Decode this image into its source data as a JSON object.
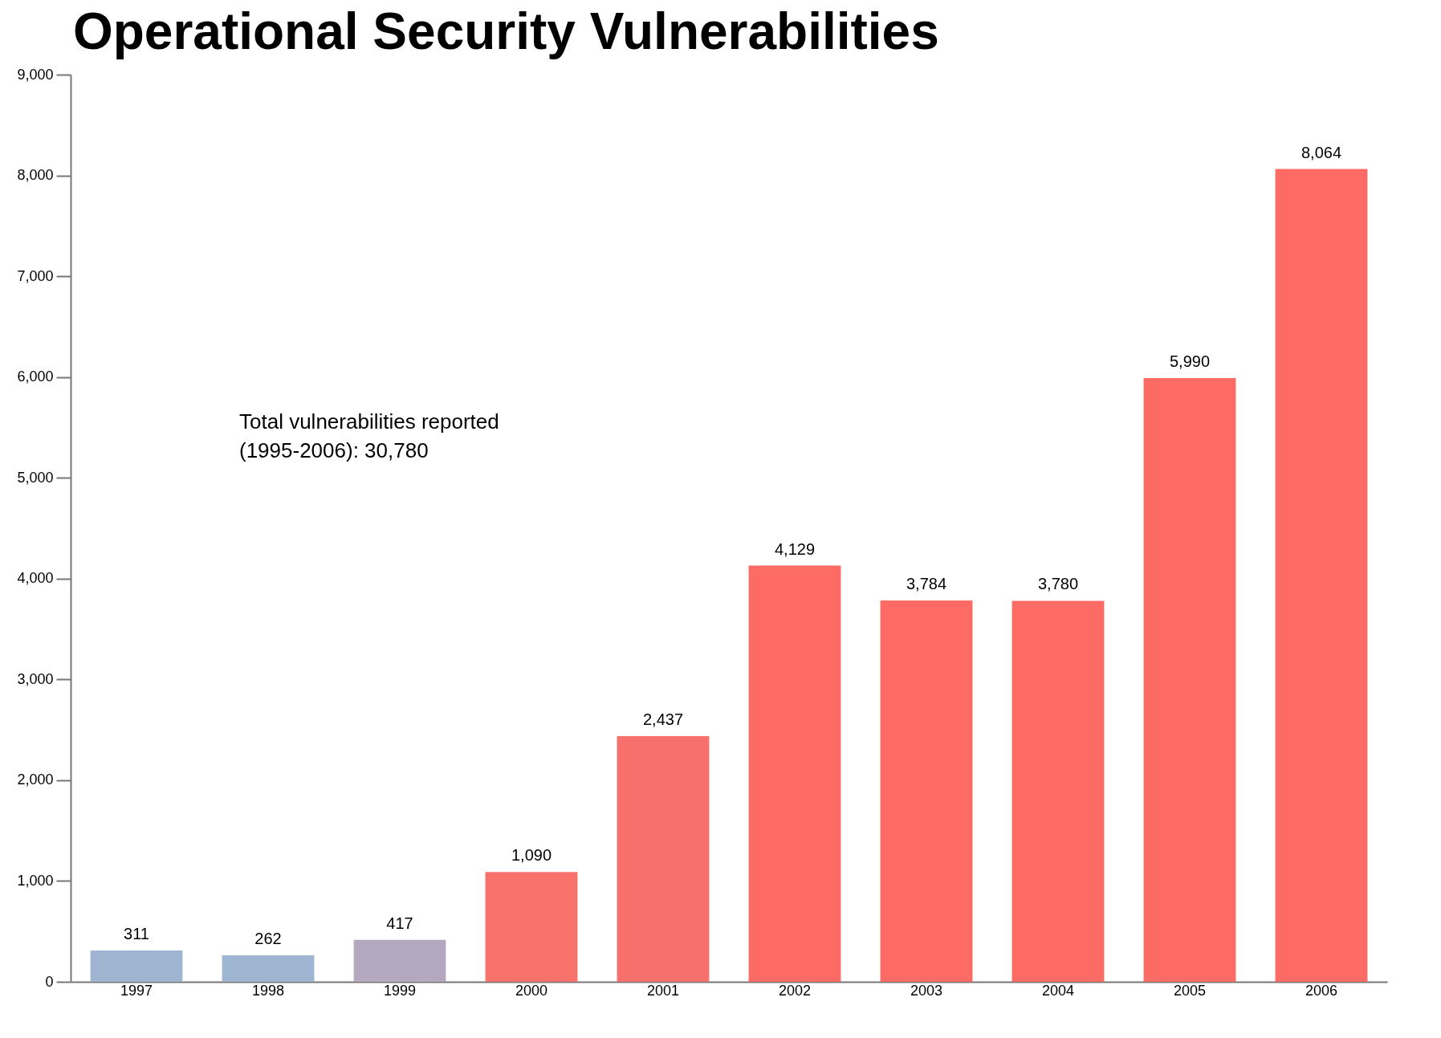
{
  "chart_data": {
    "type": "bar",
    "title": "Operational Security Vulnerabilities",
    "categories": [
      "1997",
      "1998",
      "1999",
      "2000",
      "2001",
      "2002",
      "2003",
      "2004",
      "2005",
      "2006"
    ],
    "values": [
      311,
      262,
      417,
      1090,
      2437,
      4129,
      3784,
      3780,
      5990,
      8064
    ],
    "value_labels": [
      "311",
      "262",
      "417",
      "1,090",
      "2,437",
      "4,129",
      "3,784",
      "3,780",
      "5,990",
      "8,064"
    ],
    "colors": [
      "#9fb4d0",
      "#9fb4d0",
      "#b4a8c0",
      "#f9716b",
      "#f7706b",
      "#fd6b64",
      "#fd6b64",
      "#fd6b64",
      "#fd6b64",
      "#fd6b64"
    ],
    "ylim": [
      0,
      9000
    ],
    "yticks": [
      0,
      {
        "value": 1000,
        "label": "1,000"
      },
      {
        "value": 2000,
        "label": "2,000"
      },
      {
        "value": 3000,
        "label": "3,000"
      },
      {
        "value": 4000,
        "label": "4,000"
      },
      {
        "value": 5000,
        "label": "5,000"
      },
      {
        "value": 6000,
        "label": "6,000"
      },
      {
        "value": 7000,
        "label": "7,000"
      },
      {
        "value": 8000,
        "label": "8,000"
      },
      {
        "value": 9000,
        "label": "9,000"
      }
    ],
    "annotations": [
      "Total vulnerabilities reported\n(1995-2006): 30,780"
    ]
  }
}
